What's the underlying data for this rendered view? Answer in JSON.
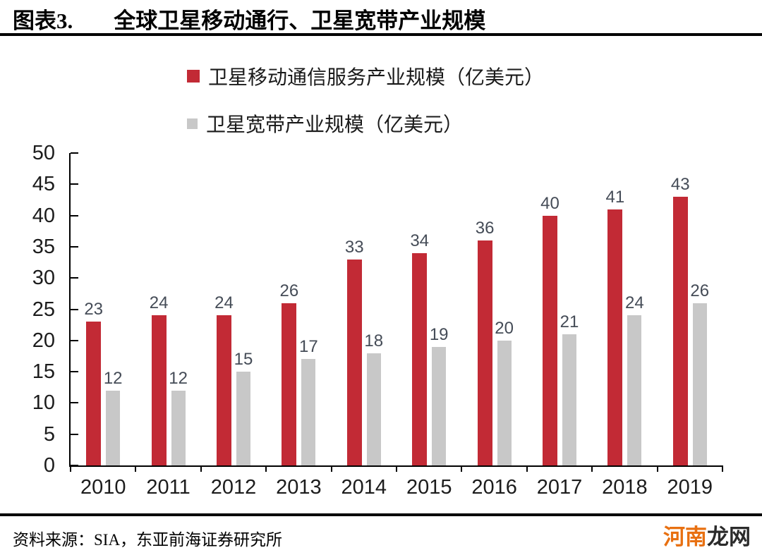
{
  "header": {
    "figure_label": "图表3.",
    "title": "全球卫星移动通行、卫星宽带产业规模"
  },
  "legend": {
    "items": [
      {
        "label": "卫星移动通信服务产业规模（亿美元）",
        "color": "#c22a35"
      },
      {
        "label": "卫星宽带产业规模（亿美元）",
        "color": "#c8c8c8"
      }
    ]
  },
  "chart_data": {
    "type": "bar",
    "categories": [
      "2010",
      "2011",
      "2012",
      "2013",
      "2014",
      "2015",
      "2016",
      "2017",
      "2018",
      "2019"
    ],
    "series": [
      {
        "name": "卫星移动通信服务产业规模（亿美元）",
        "color": "#c22a35",
        "values": [
          23,
          24,
          24,
          26,
          33,
          34,
          36,
          40,
          41,
          43
        ]
      },
      {
        "name": "卫星宽带产业规模（亿美元）",
        "color": "#c8c8c8",
        "values": [
          12,
          12,
          15,
          17,
          18,
          19,
          20,
          21,
          24,
          26
        ]
      }
    ],
    "title": "全球卫星移动通行、卫星宽带产业规模",
    "xlabel": "",
    "ylabel": "",
    "ylim": [
      0,
      50
    ],
    "yticks": [
      50,
      45,
      40,
      35,
      30,
      25,
      20,
      15,
      10,
      5,
      0
    ],
    "grid": false,
    "legend_position": "top-center",
    "data_labels": true
  },
  "footer": {
    "source": "资料来源：SIA，东亚前海证券研究所",
    "watermark_left": "河南",
    "watermark_right": "龙网",
    "watermark_left_color": "#e87011"
  },
  "colors": {
    "series_mobile": "#c22a35",
    "series_broadband": "#c8c8c8",
    "axis": "#000000",
    "value_label": "#454c57"
  }
}
